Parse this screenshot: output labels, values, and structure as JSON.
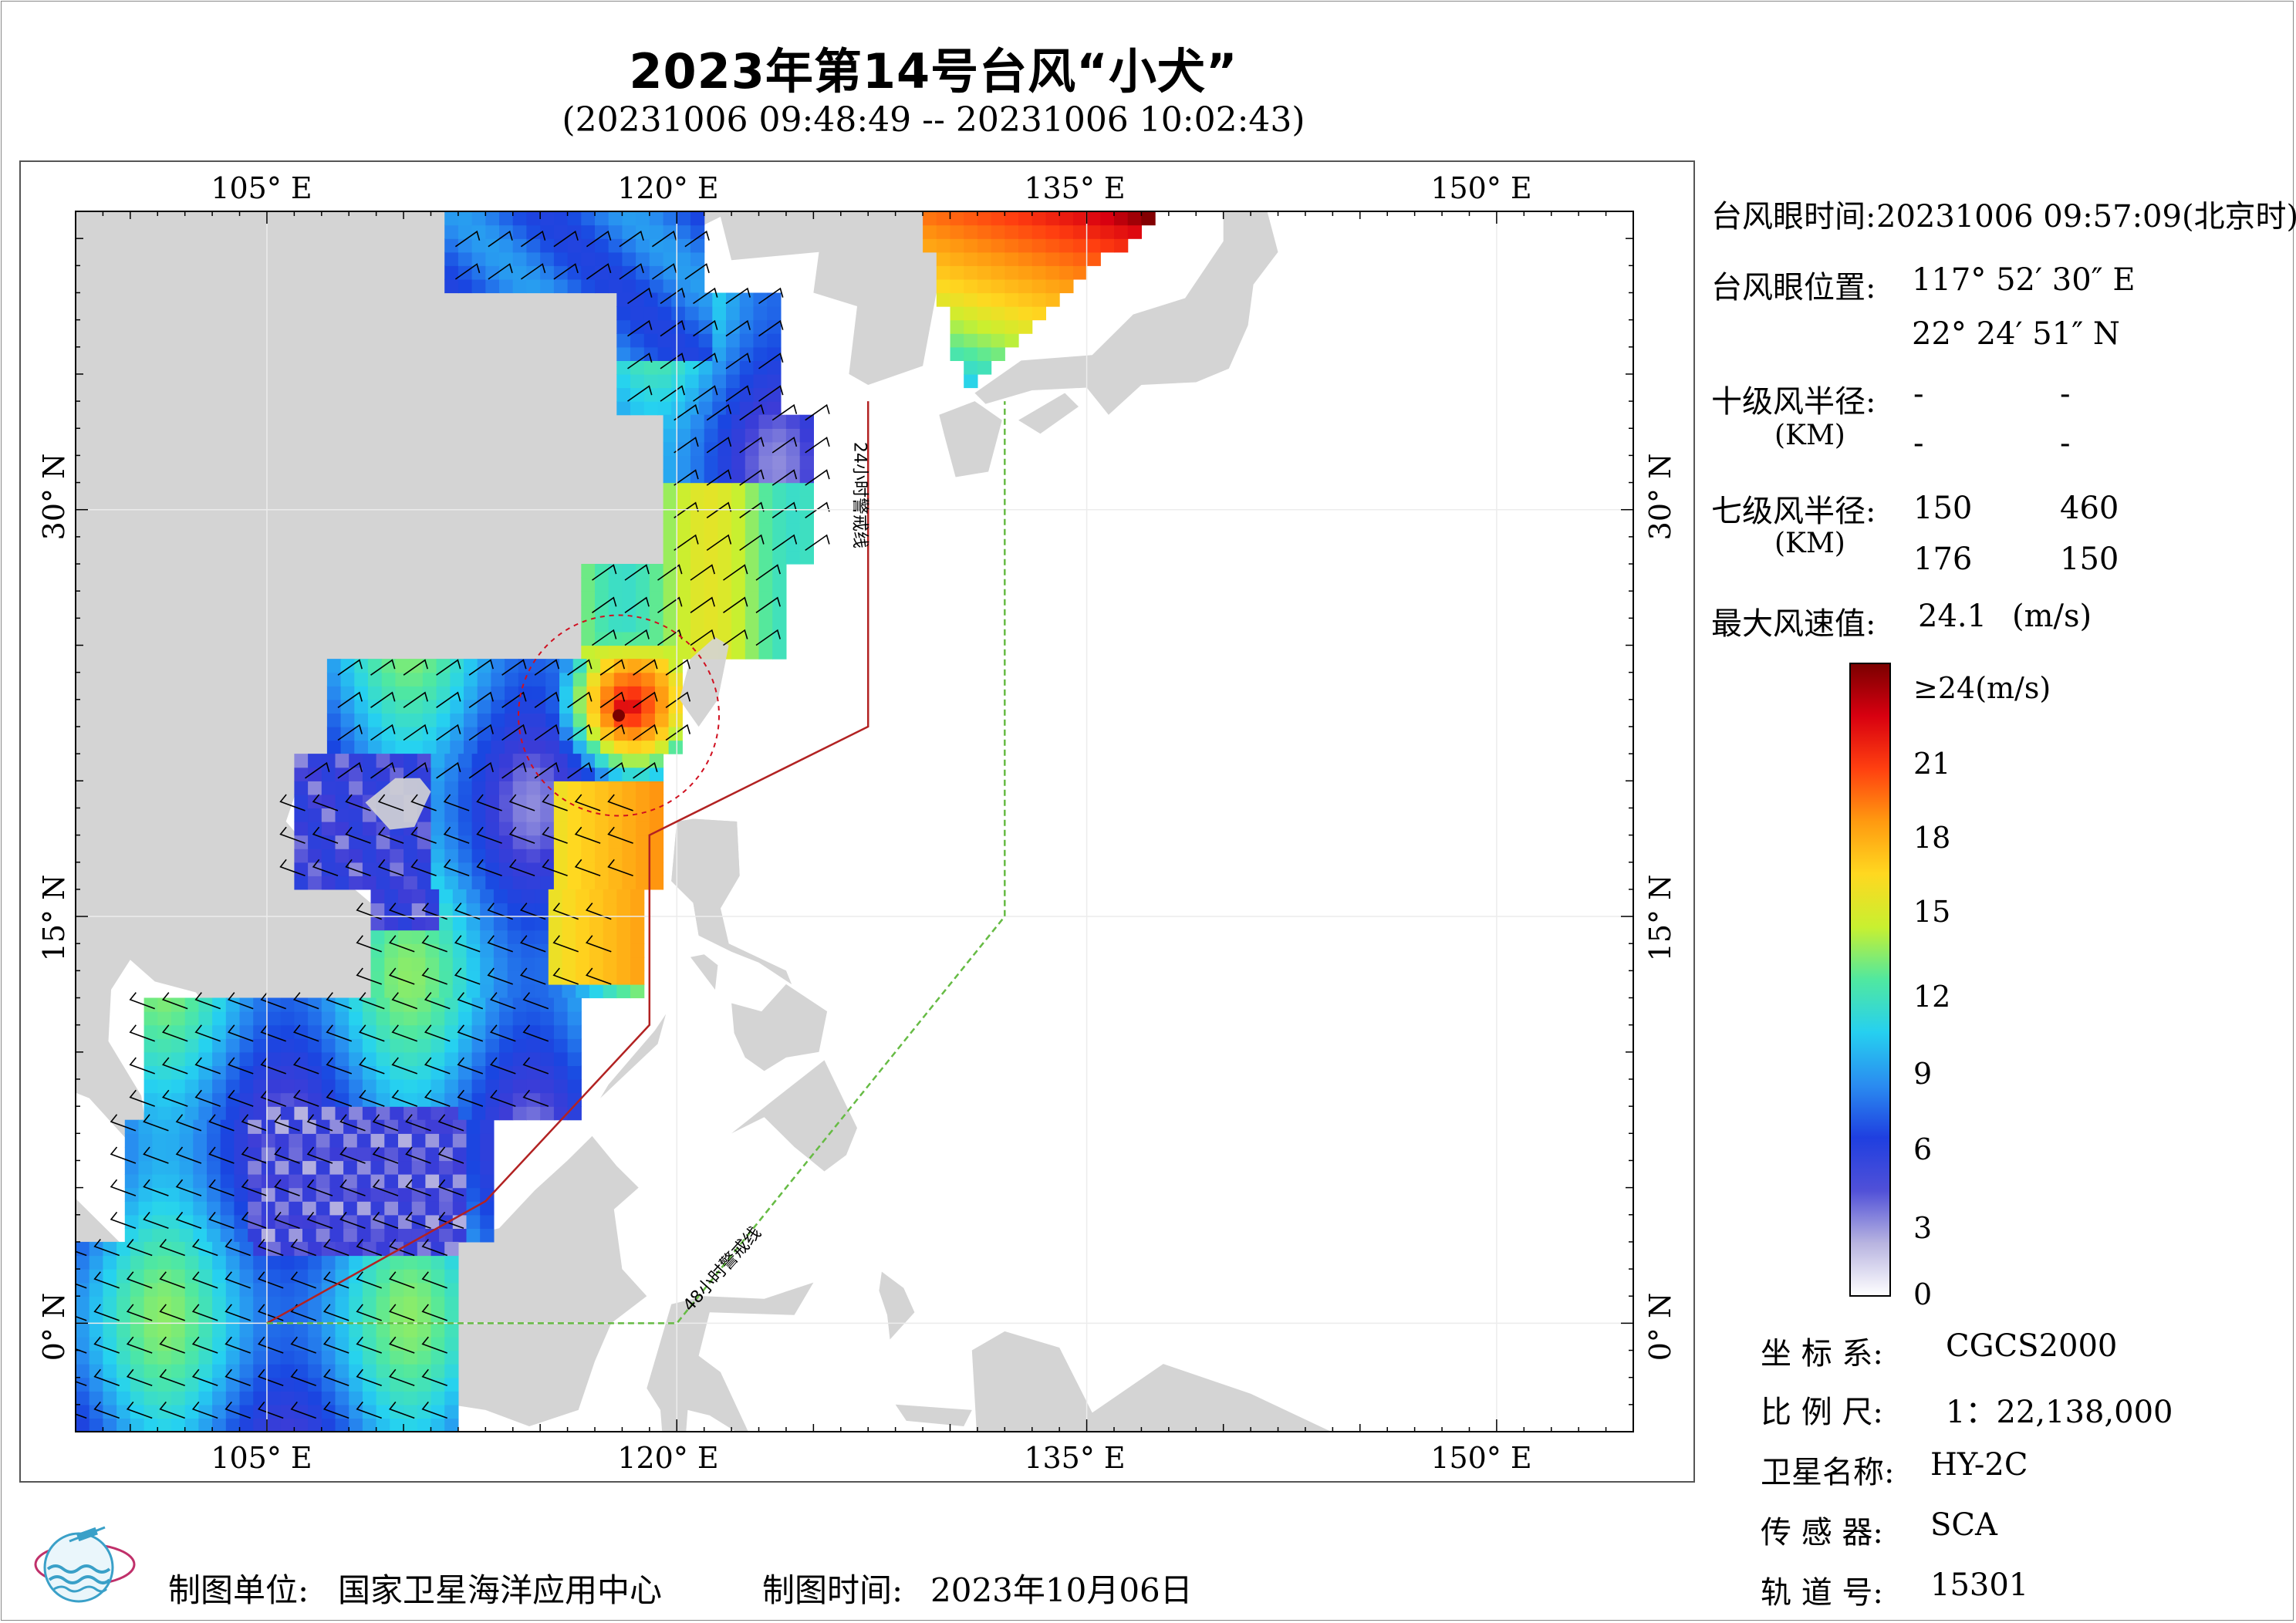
{
  "title": "2023年第14号台风“小犬”",
  "subtitle": "(20231006 09:48:49 -- 20231006 10:02:43)",
  "axes": {
    "top_lon": [
      "105° E",
      "120° E",
      "135° E",
      "150° E"
    ],
    "bottom_lon": [
      "105° E",
      "120° E",
      "135° E",
      "150° E"
    ],
    "left_lat": [
      "30° N",
      "15° N",
      "0° N"
    ],
    "right_lat": [
      "30° N",
      "15° N",
      "0° N"
    ]
  },
  "map": {
    "lon_range": [
      98,
      155
    ],
    "lat_range": [
      -4,
      41
    ],
    "warning_24h_label": "24小时警戒线",
    "warning_48h_label": "48小时警戒线",
    "warning_24h_color": "#b22222",
    "warning_48h_color": "#66bb44",
    "land_color": "#d4d4d4",
    "typhoon_eye": {
      "lon": 117.875,
      "lat": 22.41
    }
  },
  "info": {
    "eye_time_label": "台风眼时间:",
    "eye_time_value": "20231006 09:57:09(北京时)",
    "eye_pos_label": "台风眼位置:",
    "eye_lon": "117° 52′ 30″ E",
    "eye_lat": "22° 24′ 51″ N",
    "r10_label": "十级风半径:",
    "km_label": "(KM)",
    "r10_values": [
      "-",
      "-",
      "-",
      "-"
    ],
    "r7_label": "七级风半径:",
    "r7_values": [
      "150",
      "460",
      "176",
      "150"
    ],
    "max_wind_label": "最大风速值:",
    "max_wind_value": "24.1",
    "max_wind_unit": "(m/s)"
  },
  "colorbar": {
    "labels": [
      "≥24(m/s)",
      "21",
      "18",
      "15",
      "12",
      "9",
      "6",
      "3",
      "0"
    ],
    "ticks": [
      24,
      21,
      18,
      15,
      12,
      9,
      6,
      3,
      0
    ],
    "colors": [
      "#ffffff",
      "#b8b4e0",
      "#5050d8",
      "#1f3fe0",
      "#2a8cf0",
      "#26d0f0",
      "#50e8a0",
      "#c8f030",
      "#ffd820",
      "#ff9a10",
      "#ff4010",
      "#d80010",
      "#7a0000"
    ]
  },
  "meta": {
    "crs_label": "坐 标 系:",
    "crs_value": "CGCS2000",
    "scale_label": "比 例 尺:",
    "scale_value": "1：22,138,000",
    "satellite_label": "卫星名称:",
    "satellite_value": "HY-2C",
    "sensor_label": "传 感 器:",
    "sensor_value": "SCA",
    "orbit_label": "轨 道 号:",
    "orbit_value": "15301"
  },
  "footer": {
    "maker_label": "制图单位:",
    "maker_value": "国家卫星海洋应用中心",
    "date_label": "制图时间:",
    "date_value": "2023年10月06日"
  }
}
